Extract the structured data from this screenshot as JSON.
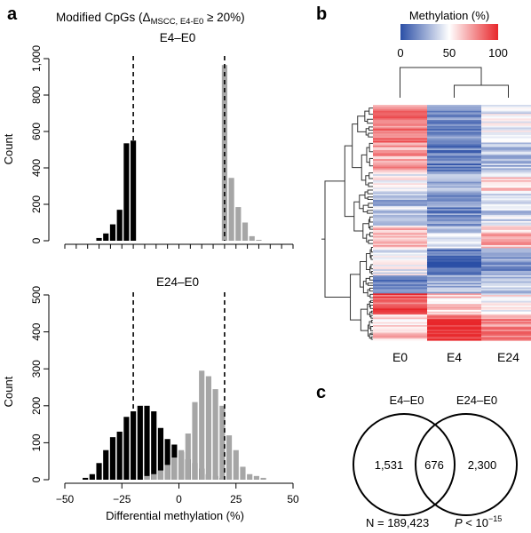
{
  "panel_labels": {
    "a": "a",
    "b": "b",
    "c": "c"
  },
  "panel_a": {
    "title_prefix": "Modified CpGs (",
    "title_delta": "Δ",
    "title_sub": "MSCC, E4-E0",
    "title_suffix": " ≥ 20%)",
    "xlabel": "Differential methylation (%)"
  },
  "chart_data": [
    {
      "type": "bar",
      "title": "E4–E0",
      "ylabel": "Count",
      "xlim": [
        -50,
        50
      ],
      "ylim": [
        0,
        1000
      ],
      "yticks": [
        0,
        200,
        400,
        600,
        800,
        1000
      ],
      "ytick_labels": [
        "0",
        "200",
        "400",
        "600",
        "800",
        "1,000"
      ],
      "threshold_lines": [
        -20,
        20
      ],
      "bar_width": 2.4,
      "series": [
        {
          "color": "#000000",
          "x": [
            -35,
            -32,
            -29,
            -26,
            -23,
            -20
          ],
          "values": [
            15,
            40,
            90,
            170,
            535,
            550
          ]
        },
        {
          "color": "#a6a6a6",
          "x": [
            20,
            23,
            26,
            29,
            32,
            35
          ],
          "values": [
            965,
            345,
            185,
            100,
            25,
            5
          ]
        }
      ]
    },
    {
      "type": "bar",
      "title": "E24–E0",
      "ylabel": "Count",
      "xlim": [
        -50,
        50
      ],
      "ylim": [
        0,
        500
      ],
      "yticks": [
        0,
        100,
        200,
        300,
        400,
        500
      ],
      "ytick_labels": [
        "0",
        "100",
        "200",
        "300",
        "400",
        "500"
      ],
      "xticks": [
        -50,
        -25,
        0,
        25,
        50
      ],
      "xtick_labels": [
        "−50",
        "−25",
        "0",
        "25",
        "50"
      ],
      "xlabel": "Differential methylation (%)",
      "threshold_lines": [
        -20,
        20
      ],
      "bar_width": 2.4,
      "series": [
        {
          "color": "#000000",
          "x": [
            -41,
            -38,
            -35,
            -32,
            -29,
            -26,
            -23,
            -20,
            -17,
            -14,
            -11,
            -8,
            -5,
            -2,
            1,
            4,
            7,
            10,
            13,
            16,
            19
          ],
          "values": [
            5,
            15,
            45,
            80,
            115,
            130,
            170,
            185,
            200,
            200,
            185,
            140,
            110,
            95,
            75,
            55,
            45,
            30,
            15,
            10,
            5
          ]
        },
        {
          "color": "#a6a6a6",
          "x": [
            -14,
            -11,
            -8,
            -5,
            -2,
            1,
            4,
            7,
            10,
            13,
            16,
            19,
            22,
            25,
            28,
            31,
            34,
            37
          ],
          "values": [
            10,
            15,
            25,
            40,
            60,
            80,
            125,
            210,
            295,
            280,
            245,
            200,
            120,
            80,
            35,
            15,
            10,
            5
          ]
        }
      ]
    },
    {
      "type": "heatmap",
      "colorbar": {
        "title": "Methylation (%)",
        "ticks": [
          0,
          50,
          100
        ],
        "tick_labels": [
          "0",
          "50",
          "100"
        ],
        "low": "#2b4fa6",
        "mid": "#ffffff",
        "high": "#e8272b"
      },
      "columns": [
        "E0",
        "E4",
        "E24"
      ],
      "row_blocks_top_to_bottom": [
        {
          "rows": 25,
          "values": [
            80,
            18,
            45
          ]
        },
        {
          "rows": 20,
          "values": [
            72,
            14,
            32
          ]
        },
        {
          "rows": 13,
          "values": [
            48,
            26,
            58
          ]
        },
        {
          "rows": 10,
          "values": [
            30,
            20,
            40
          ]
        },
        {
          "rows": 12,
          "values": [
            38,
            18,
            38
          ]
        },
        {
          "rows": 15,
          "values": [
            62,
            40,
            66
          ]
        },
        {
          "rows": 18,
          "values": [
            45,
            10,
            22
          ]
        },
        {
          "rows": 12,
          "values": [
            12,
            30,
            35
          ]
        },
        {
          "rows": 14,
          "values": [
            88,
            60,
            52
          ]
        },
        {
          "rows": 17,
          "values": [
            62,
            92,
            78
          ]
        }
      ]
    },
    {
      "type": "venn",
      "sets": [
        "E4–E0",
        "E24–E0"
      ],
      "only_left": "1,531",
      "overlap": "676",
      "only_right": "2,300",
      "n_label": "N = 189,423",
      "p_label_prefix": "P",
      "p_label_mid": " < 10",
      "p_label_exp": "−15"
    }
  ]
}
